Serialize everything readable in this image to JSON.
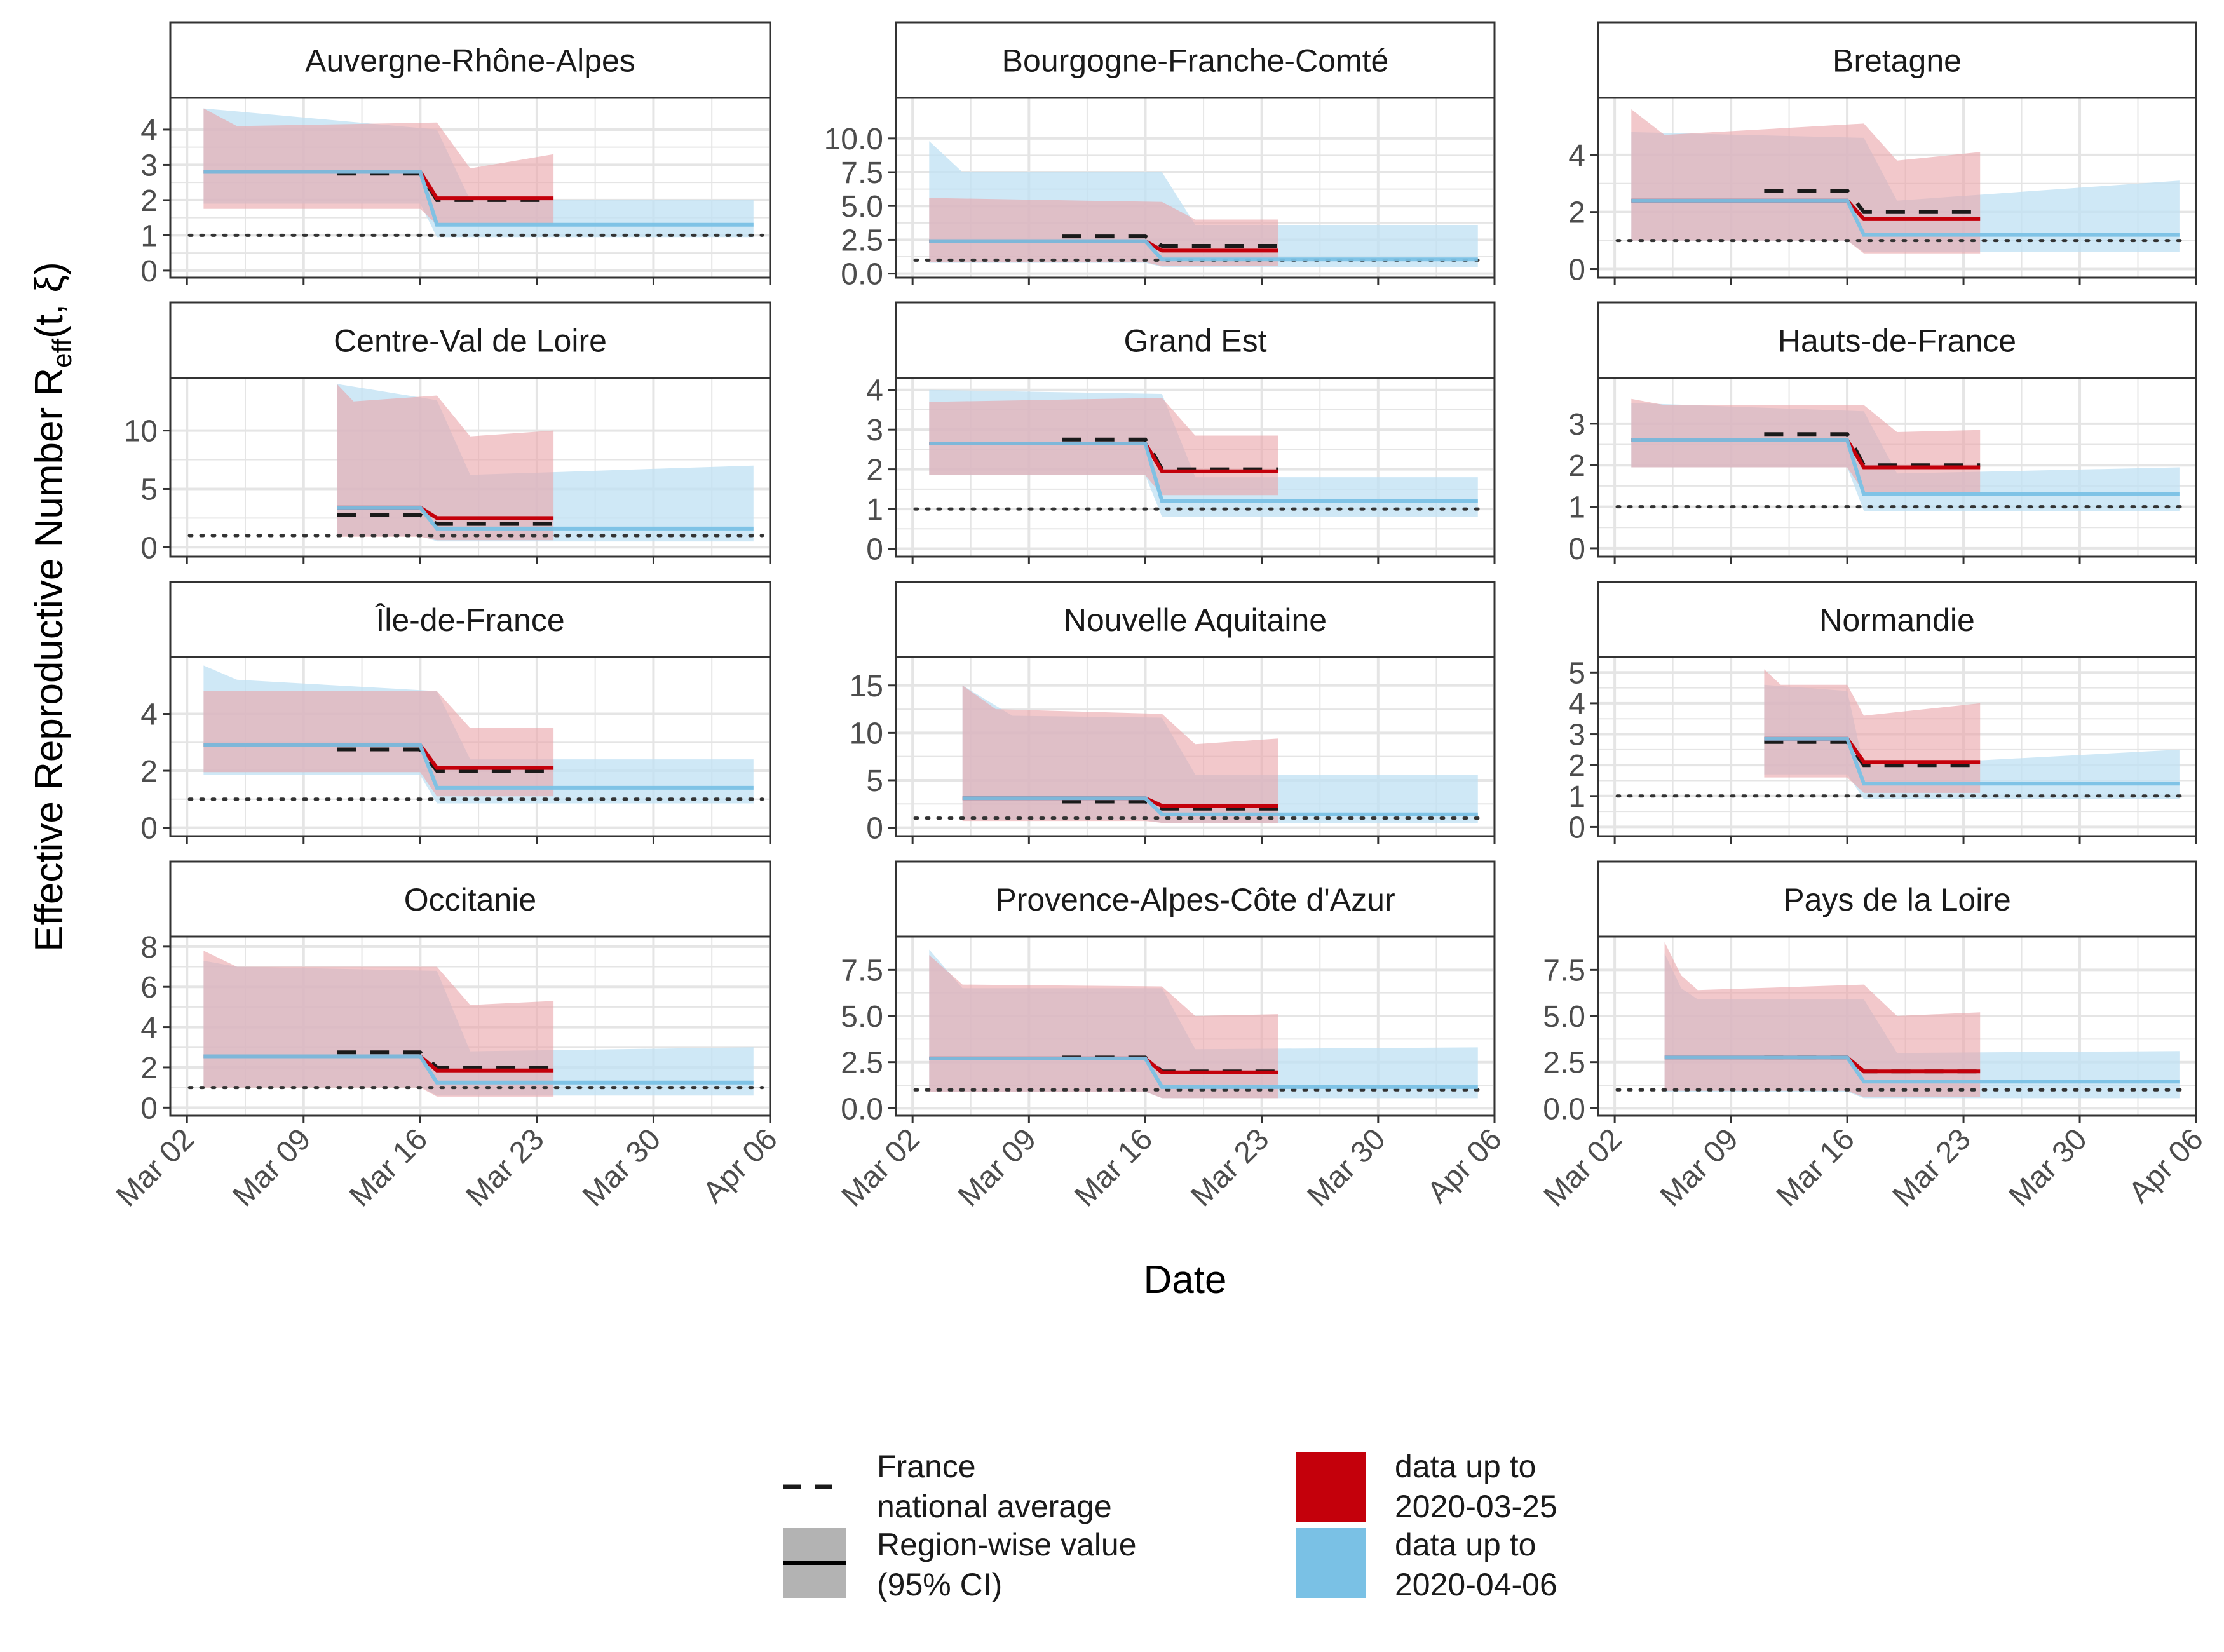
{
  "figure": {
    "ylabel_main": "Effective Reproductive Number R",
    "ylabel_sub": "eff",
    "ylabel_args": "(t, ξ)",
    "xlabel": "Date"
  },
  "colors": {
    "red": "#c4000b",
    "red_band": "#e9a3a8",
    "blue": "#7ac1e5",
    "blue_band": "#bfe0f3",
    "overlap_band": "#a48895",
    "grid": "#e5e5e5",
    "frame": "#333333",
    "strip_bg": "#ffffff",
    "text": "#1a1a1a",
    "tick_text": "#4d4d4d",
    "legend_grey": "#b3b3b3"
  },
  "legend": {
    "items": [
      {
        "key": "dashed-line",
        "label_lines": [
          "France",
          "national average"
        ]
      },
      {
        "key": "solid-line-with-band",
        "label_lines": [
          "Region-wise value",
          "(95% CI)"
        ]
      },
      {
        "key": "red-swatch",
        "label_lines": [
          "data up to",
          "2020-03-25"
        ]
      },
      {
        "key": "blue-swatch",
        "label_lines": [
          "data up to",
          "2020-04-06"
        ]
      }
    ]
  },
  "chart_data": {
    "type": "line",
    "facet_rows": 4,
    "facet_cols": 3,
    "x_axis": {
      "type": "date",
      "range": [
        "2020-03-01",
        "2020-04-06"
      ],
      "ticks": [
        "2020-03-02",
        "2020-03-09",
        "2020-03-16",
        "2020-03-23",
        "2020-03-30",
        "2020-04-06"
      ],
      "tick_labels": [
        "Mar 02",
        "Mar 09",
        "Mar 16",
        "Mar 23",
        "Mar 30",
        "Apr 06"
      ]
    },
    "reference_line": 1,
    "panels": [
      {
        "name": "Auvergne-Rhône-Alpes",
        "ylim": [
          -0.2,
          4.9
        ],
        "yticks": [
          0,
          1,
          2,
          3,
          4
        ],
        "ytick_labels": [
          "0",
          "1",
          "2",
          "3",
          "4"
        ],
        "natavg": {
          "start": "2020-03-11",
          "before": 2.75,
          "after": 2.0
        },
        "red": {
          "start": "2020-03-03",
          "end": "2020-03-24",
          "before": 2.8,
          "after": 2.05,
          "lo_b": 1.75,
          "lo_a": 1.3,
          "hi": [
            [
              0,
              4.6
            ],
            [
              2,
              4.1
            ],
            [
              14,
              4.2
            ],
            [
              16,
              2.9
            ],
            [
              21,
              3.3
            ]
          ]
        },
        "blue": {
          "start": "2020-03-03",
          "end": "2020-04-05",
          "before": 2.8,
          "after": 1.3,
          "lo_b": 1.9,
          "lo_a": 0.95,
          "hi": [
            [
              0,
              4.6
            ],
            [
              14,
              4.0
            ],
            [
              16,
              2.0
            ],
            [
              33,
              2.0
            ]
          ]
        }
      },
      {
        "name": "Bourgogne-Franche-Comté",
        "ylim": [
          -0.3,
          13.0
        ],
        "yticks": [
          0,
          2.5,
          5,
          7.5,
          10
        ],
        "ytick_labels": [
          "0.0",
          "2.5",
          "5.0",
          "7.5",
          "10.0"
        ],
        "natavg": {
          "start": "2020-03-11",
          "before": 2.75,
          "after": 2.05
        },
        "red": {
          "start": "2020-03-03",
          "end": "2020-03-24",
          "before": 2.4,
          "after": 1.7,
          "lo_b": 0.85,
          "lo_a": 0.55,
          "hi": [
            [
              0,
              5.6
            ],
            [
              14,
              5.3
            ],
            [
              16,
              4.0
            ],
            [
              21,
              4.0
            ]
          ]
        },
        "blue": {
          "start": "2020-03-03",
          "end": "2020-04-05",
          "before": 2.4,
          "after": 1.05,
          "lo_b": 0.8,
          "lo_a": 0.5,
          "hi": [
            [
              0,
              9.8
            ],
            [
              2,
              7.5
            ],
            [
              14,
              7.5
            ],
            [
              16,
              3.6
            ],
            [
              33,
              3.6
            ]
          ]
        }
      },
      {
        "name": "Bretagne",
        "ylim": [
          -0.3,
          6.0
        ],
        "yticks": [
          0,
          2,
          4
        ],
        "ytick_labels": [
          "0",
          "2",
          "4"
        ],
        "natavg": {
          "start": "2020-03-11",
          "before": 2.75,
          "after": 2.0
        },
        "red": {
          "start": "2020-03-03",
          "end": "2020-03-24",
          "before": 2.4,
          "after": 1.75,
          "lo_b": 1.0,
          "lo_a": 0.55,
          "hi": [
            [
              0,
              5.6
            ],
            [
              2,
              4.7
            ],
            [
              14,
              5.1
            ],
            [
              16,
              3.8
            ],
            [
              21,
              4.1
            ]
          ]
        },
        "blue": {
          "start": "2020-03-03",
          "end": "2020-04-05",
          "before": 2.4,
          "after": 1.2,
          "lo_b": 1.0,
          "lo_a": 0.6,
          "hi": [
            [
              0,
              4.8
            ],
            [
              14,
              4.6
            ],
            [
              16,
              2.4
            ],
            [
              33,
              3.1
            ]
          ]
        }
      },
      {
        "name": "Centre-Val de Loire",
        "ylim": [
          -0.8,
          14.5
        ],
        "yticks": [
          0,
          5,
          10
        ],
        "ytick_labels": [
          "0",
          "5",
          "10"
        ],
        "natavg": {
          "start": "2020-03-11",
          "before": 2.75,
          "after": 2.0
        },
        "red": {
          "start": "2020-03-11",
          "end": "2020-03-24",
          "before": 3.4,
          "after": 2.5,
          "lo_b": 0.9,
          "lo_a": 0.6,
          "hi": [
            [
              0,
              14.0
            ],
            [
              1,
              12.5
            ],
            [
              6,
              13.0
            ],
            [
              8,
              9.5
            ],
            [
              13,
              10.0
            ]
          ]
        },
        "blue": {
          "start": "2020-03-11",
          "end": "2020-04-05",
          "before": 3.4,
          "after": 1.6,
          "lo_b": 1.0,
          "lo_a": 0.5,
          "hi": [
            [
              0,
              14.0
            ],
            [
              6,
              12.6
            ],
            [
              8,
              6.2
            ],
            [
              25,
              7.0
            ]
          ]
        }
      },
      {
        "name": "Grand Est",
        "ylim": [
          -0.2,
          4.3
        ],
        "yticks": [
          0,
          1,
          2,
          3,
          4
        ],
        "ytick_labels": [
          "0",
          "1",
          "2",
          "3",
          "4"
        ],
        "natavg": {
          "start": "2020-03-11",
          "before": 2.75,
          "after": 2.0
        },
        "red": {
          "start": "2020-03-03",
          "end": "2020-03-24",
          "before": 2.65,
          "after": 1.95,
          "lo_b": 1.85,
          "lo_a": 1.35,
          "hi": [
            [
              0,
              3.7
            ],
            [
              14,
              3.8
            ],
            [
              16,
              2.85
            ],
            [
              21,
              2.85
            ]
          ]
        },
        "blue": {
          "start": "2020-03-03",
          "end": "2020-04-05",
          "before": 2.65,
          "after": 1.2,
          "lo_b": 1.85,
          "lo_a": 0.8,
          "hi": [
            [
              0,
              4.0
            ],
            [
              14,
              3.9
            ],
            [
              16,
              1.8
            ],
            [
              33,
              1.8
            ]
          ]
        }
      },
      {
        "name": "Hauts-de-France",
        "ylim": [
          -0.2,
          4.1
        ],
        "yticks": [
          0,
          1,
          2,
          3
        ],
        "ytick_labels": [
          "0",
          "1",
          "2",
          "3"
        ],
        "natavg": {
          "start": "2020-03-11",
          "before": 2.75,
          "after": 2.0
        },
        "red": {
          "start": "2020-03-03",
          "end": "2020-03-24",
          "before": 2.6,
          "after": 1.95,
          "lo_b": 1.95,
          "lo_a": 1.35,
          "hi": [
            [
              0,
              3.6
            ],
            [
              2,
              3.45
            ],
            [
              14,
              3.45
            ],
            [
              16,
              2.8
            ],
            [
              21,
              2.85
            ]
          ]
        },
        "blue": {
          "start": "2020-03-03",
          "end": "2020-04-05",
          "before": 2.6,
          "after": 1.3,
          "lo_b": 1.95,
          "lo_a": 0.9,
          "hi": [
            [
              0,
              3.5
            ],
            [
              14,
              3.3
            ],
            [
              16,
              1.8
            ],
            [
              33,
              1.95
            ]
          ]
        }
      },
      {
        "name": "Île-de-France",
        "ylim": [
          -0.3,
          6.0
        ],
        "yticks": [
          0,
          2,
          4
        ],
        "ytick_labels": [
          "0",
          "2",
          "4"
        ],
        "natavg": {
          "start": "2020-03-11",
          "before": 2.75,
          "after": 2.0
        },
        "red": {
          "start": "2020-03-03",
          "end": "2020-03-24",
          "before": 2.9,
          "after": 2.1,
          "lo_b": 1.95,
          "lo_a": 1.1,
          "hi": [
            [
              0,
              4.8
            ],
            [
              14,
              4.8
            ],
            [
              16,
              3.5
            ],
            [
              21,
              3.5
            ]
          ]
        },
        "blue": {
          "start": "2020-03-03",
          "end": "2020-04-05",
          "before": 2.9,
          "after": 1.4,
          "lo_b": 1.85,
          "lo_a": 0.85,
          "hi": [
            [
              0,
              5.7
            ],
            [
              2,
              5.2
            ],
            [
              14,
              4.8
            ],
            [
              16,
              2.4
            ],
            [
              33,
              2.4
            ]
          ]
        }
      },
      {
        "name": "Nouvelle Aquitaine",
        "ylim": [
          -0.9,
          18.0
        ],
        "yticks": [
          0,
          5,
          10,
          15
        ],
        "ytick_labels": [
          "0",
          "5",
          "10",
          "15"
        ],
        "natavg": {
          "start": "2020-03-11",
          "before": 2.75,
          "after": 2.0
        },
        "red": {
          "start": "2020-03-05",
          "end": "2020-03-24",
          "before": 3.1,
          "after": 2.3,
          "lo_b": 0.7,
          "lo_a": 0.5,
          "hi": [
            [
              0,
              15.0
            ],
            [
              2,
              12.5
            ],
            [
              12,
              12.0
            ],
            [
              14,
              8.8
            ],
            [
              19,
              9.4
            ]
          ]
        },
        "blue": {
          "start": "2020-03-05",
          "end": "2020-04-05",
          "before": 3.1,
          "after": 1.4,
          "lo_b": 0.8,
          "lo_a": 0.5,
          "hi": [
            [
              0,
              15.0
            ],
            [
              3,
              11.8
            ],
            [
              12,
              11.6
            ],
            [
              14,
              5.6
            ],
            [
              31,
              5.6
            ]
          ]
        }
      },
      {
        "name": "Normandie",
        "ylim": [
          -0.3,
          5.5
        ],
        "yticks": [
          0,
          1,
          2,
          3,
          4,
          5
        ],
        "ytick_labels": [
          "0",
          "1",
          "2",
          "3",
          "4",
          "5"
        ],
        "natavg": {
          "start": "2020-03-11",
          "before": 2.75,
          "after": 2.0
        },
        "red": {
          "start": "2020-03-11",
          "end": "2020-03-24",
          "before": 2.85,
          "after": 2.1,
          "lo_b": 1.6,
          "lo_a": 1.1,
          "hi": [
            [
              0,
              5.1
            ],
            [
              1,
              4.6
            ],
            [
              5,
              4.6
            ],
            [
              6,
              3.6
            ],
            [
              13,
              4.0
            ]
          ]
        },
        "blue": {
          "start": "2020-03-11",
          "end": "2020-04-05",
          "before": 2.85,
          "after": 1.4,
          "lo_b": 1.7,
          "lo_a": 0.9,
          "hi": [
            [
              0,
              4.6
            ],
            [
              5,
              4.4
            ],
            [
              6,
              1.95
            ],
            [
              25,
              2.5
            ]
          ]
        }
      },
      {
        "name": "Occitanie",
        "ylim": [
          -0.4,
          8.5
        ],
        "yticks": [
          0,
          2,
          4,
          6,
          8
        ],
        "ytick_labels": [
          "0",
          "2",
          "4",
          "6",
          "8"
        ],
        "natavg": {
          "start": "2020-03-11",
          "before": 2.75,
          "after": 2.0
        },
        "red": {
          "start": "2020-03-03",
          "end": "2020-03-24",
          "before": 2.55,
          "after": 1.85,
          "lo_b": 1.0,
          "lo_a": 0.55,
          "hi": [
            [
              0,
              7.8
            ],
            [
              2,
              7.0
            ],
            [
              14,
              7.0
            ],
            [
              16,
              5.1
            ],
            [
              21,
              5.3
            ]
          ]
        },
        "blue": {
          "start": "2020-03-03",
          "end": "2020-04-05",
          "before": 2.55,
          "after": 1.25,
          "lo_b": 1.05,
          "lo_a": 0.6,
          "hi": [
            [
              0,
              7.3
            ],
            [
              2,
              7.0
            ],
            [
              14,
              6.8
            ],
            [
              16,
              2.8
            ],
            [
              33,
              3.0
            ]
          ]
        }
      },
      {
        "name": "Provence-Alpes-Côte d'Azur",
        "ylim": [
          -0.4,
          9.3
        ],
        "yticks": [
          0,
          2.5,
          5,
          7.5
        ],
        "ytick_labels": [
          "0.0",
          "2.5",
          "5.0",
          "7.5"
        ],
        "natavg": {
          "start": "2020-03-11",
          "before": 2.75,
          "after": 2.0
        },
        "red": {
          "start": "2020-03-03",
          "end": "2020-03-24",
          "before": 2.7,
          "after": 1.95,
          "lo_b": 0.9,
          "lo_a": 0.55,
          "hi": [
            [
              0,
              8.3
            ],
            [
              2,
              6.7
            ],
            [
              14,
              6.6
            ],
            [
              16,
              5.0
            ],
            [
              21,
              5.1
            ]
          ]
        },
        "blue": {
          "start": "2020-03-03",
          "end": "2020-04-05",
          "before": 2.7,
          "after": 1.15,
          "lo_b": 0.9,
          "lo_a": 0.55,
          "hi": [
            [
              0,
              8.6
            ],
            [
              2,
              6.5
            ],
            [
              14,
              6.5
            ],
            [
              16,
              3.2
            ],
            [
              33,
              3.3
            ]
          ]
        }
      },
      {
        "name": "Pays de la Loire",
        "ylim": [
          -0.4,
          9.3
        ],
        "yticks": [
          0,
          2.5,
          5,
          7.5
        ],
        "ytick_labels": [
          "0.0",
          "2.5",
          "5.0",
          "7.5"
        ],
        "natavg": {
          "start": "2020-03-11",
          "before": 2.75,
          "after": 2.0
        },
        "red": {
          "start": "2020-03-05",
          "end": "2020-03-24",
          "before": 2.75,
          "after": 2.0,
          "lo_b": 0.95,
          "lo_a": 0.6,
          "hi": [
            [
              0,
              9.0
            ],
            [
              1,
              7.2
            ],
            [
              2,
              6.4
            ],
            [
              12,
              6.7
            ],
            [
              14,
              5.0
            ],
            [
              19,
              5.2
            ]
          ]
        },
        "blue": {
          "start": "2020-03-05",
          "end": "2020-04-05",
          "before": 2.75,
          "after": 1.45,
          "lo_b": 0.9,
          "lo_a": 0.55,
          "hi": [
            [
              0,
              8.4
            ],
            [
              1,
              6.5
            ],
            [
              2,
              5.9
            ],
            [
              12,
              5.9
            ],
            [
              14,
              3.0
            ],
            [
              31,
              3.1
            ]
          ]
        }
      }
    ]
  }
}
